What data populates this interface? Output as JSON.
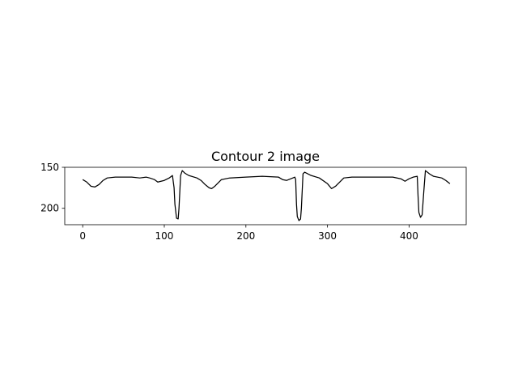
{
  "chart_data": {
    "type": "line",
    "title": "Contour 2 image",
    "xlabel": "",
    "ylabel": "",
    "xlim": [
      -22,
      470
    ],
    "ylim": [
      150,
      220
    ],
    "y_inverted": true,
    "grid": false,
    "xticks": [
      0,
      100,
      200,
      300,
      400
    ],
    "yticks": [
      150,
      200
    ],
    "colors": {
      "line": "#000000",
      "axes": "#000000",
      "background": "#ffffff"
    },
    "series": [
      {
        "x": [
          0,
          5,
          10,
          15,
          20,
          25,
          30,
          40,
          50,
          60,
          70,
          78,
          82,
          88,
          92,
          100,
          106,
          110,
          112,
          113,
          115,
          117,
          118,
          120,
          122,
          125,
          130,
          140,
          145,
          150,
          155,
          158,
          162,
          170,
          180,
          200,
          220,
          240,
          245,
          250,
          260,
          261,
          262,
          263,
          265,
          267,
          268,
          270,
          272,
          280,
          290,
          300,
          305,
          310,
          320,
          330,
          350,
          380,
          390,
          395,
          400,
          405,
          410,
          411,
          412,
          414,
          416,
          418,
          420,
          425,
          430,
          440,
          445,
          450
        ],
        "y": [
          165,
          168,
          173,
          174,
          171,
          166,
          163,
          162,
          162,
          162,
          163,
          162,
          163,
          165,
          168,
          166,
          163,
          160,
          175,
          195,
          212,
          213,
          200,
          160,
          154,
          157,
          160,
          163,
          166,
          171,
          175,
          176,
          173,
          165,
          163,
          162,
          161,
          162,
          165,
          166,
          162,
          165,
          195,
          210,
          215,
          213,
          200,
          158,
          156,
          160,
          163,
          170,
          176,
          173,
          163,
          162,
          162,
          162,
          164,
          167,
          164,
          162,
          161,
          185,
          205,
          211,
          208,
          180,
          154,
          158,
          161,
          163,
          166,
          170
        ]
      }
    ]
  }
}
